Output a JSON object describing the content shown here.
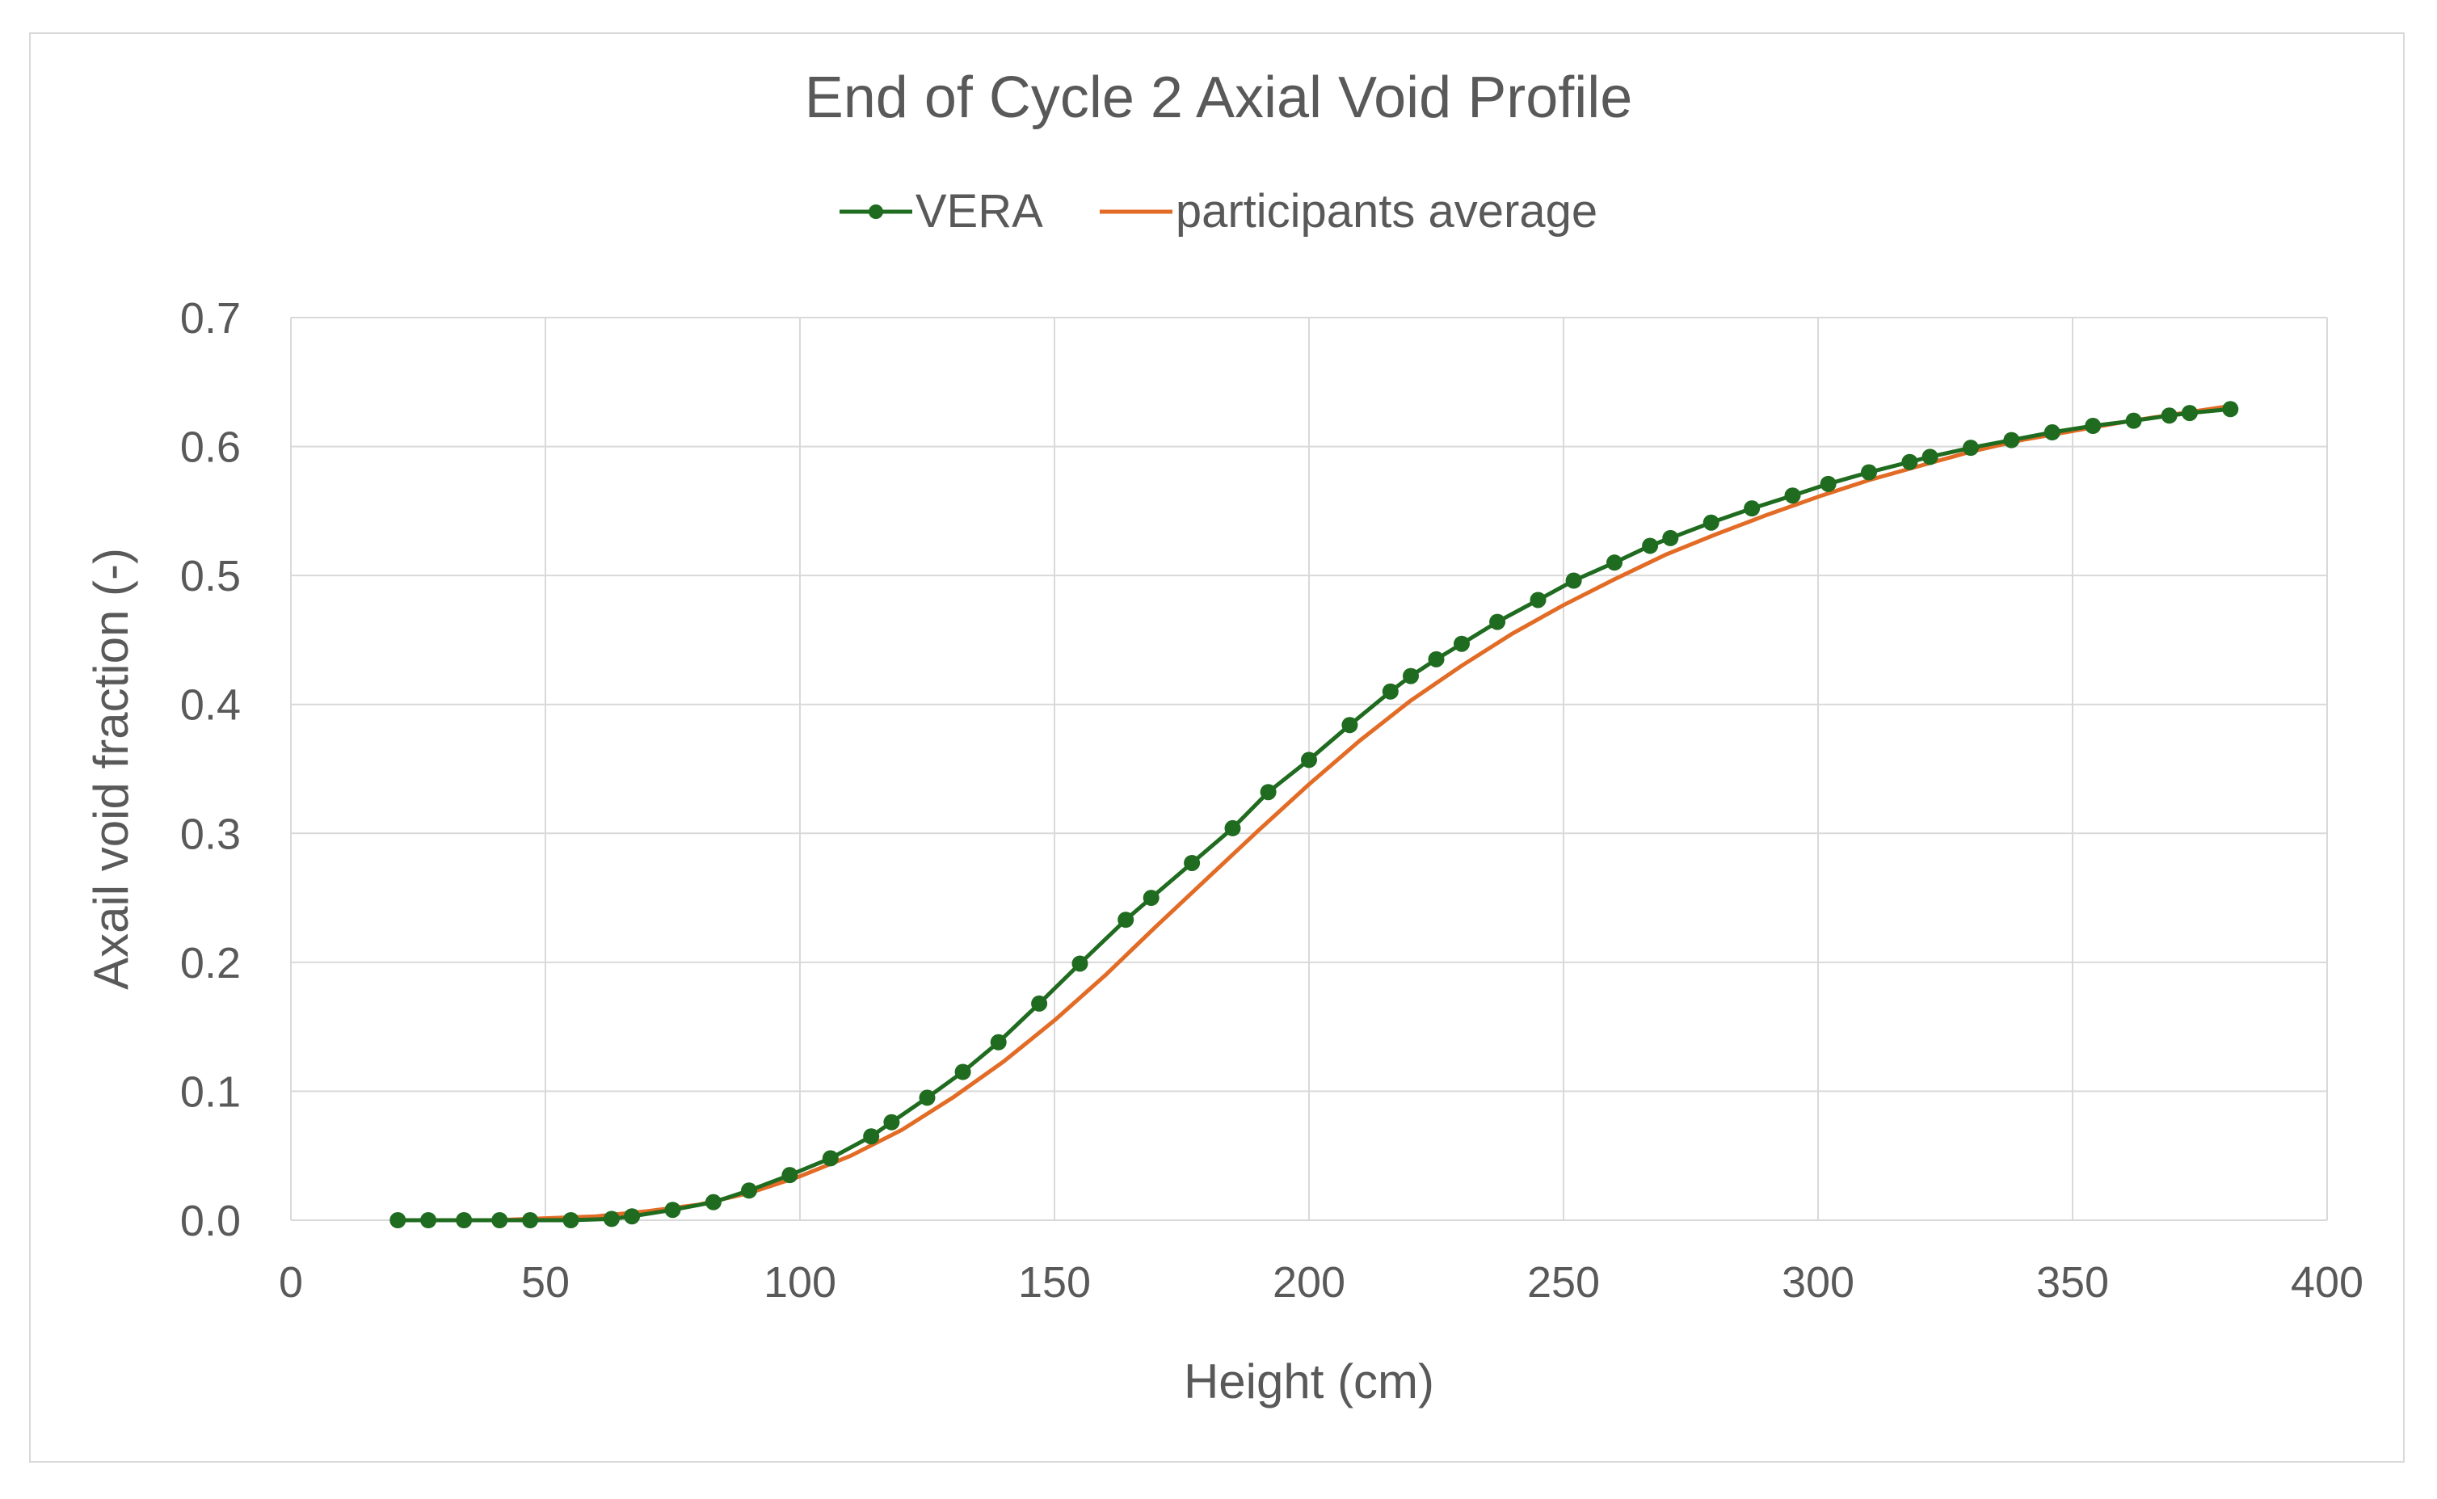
{
  "chart_data": {
    "type": "line",
    "title": "End of Cycle 2 Axial Void Profile",
    "xlabel": "Height (cm)",
    "ylabel": "Axail void fraction (-)",
    "xlim": [
      0,
      400
    ],
    "ylim": [
      0,
      0.7
    ],
    "xticks": [
      "0",
      "50",
      "100",
      "150",
      "200",
      "250",
      "300",
      "350",
      "400"
    ],
    "yticks": [
      "0.0",
      "0.1",
      "0.2",
      "0.3",
      "0.4",
      "0.5",
      "0.6",
      "0.7"
    ],
    "grid": true,
    "legend_position": "top",
    "series": [
      {
        "name": "VERA",
        "color": "#1f6b1f",
        "marker": "circle",
        "x": [
          21,
          27,
          34,
          41,
          47,
          55,
          63,
          67,
          75,
          83,
          90,
          98,
          106,
          114,
          118,
          125,
          132,
          139,
          147,
          155,
          164,
          169,
          177,
          185,
          192,
          200,
          208,
          216,
          220,
          225,
          230,
          237,
          245,
          252,
          260,
          267,
          271,
          279,
          287,
          295,
          302,
          310,
          318,
          322,
          330,
          338,
          346,
          354,
          362,
          369,
          373,
          381
        ],
        "y": [
          0.0,
          0.0,
          0.0,
          0.0,
          0.0,
          0.0,
          0.001,
          0.003,
          0.008,
          0.014,
          0.023,
          0.035,
          0.048,
          0.065,
          0.076,
          0.095,
          0.115,
          0.138,
          0.168,
          0.199,
          0.233,
          0.25,
          0.277,
          0.304,
          0.332,
          0.357,
          0.384,
          0.41,
          0.422,
          0.435,
          0.447,
          0.464,
          0.481,
          0.496,
          0.51,
          0.523,
          0.529,
          0.541,
          0.552,
          0.562,
          0.571,
          0.58,
          0.588,
          0.592,
          0.599,
          0.605,
          0.611,
          0.616,
          0.62,
          0.624,
          0.626,
          0.629
        ]
      },
      {
        "name": "participants average",
        "color": "#e26b25",
        "marker": "none",
        "x": [
          21,
          40,
          60,
          70,
          80,
          90,
          100,
          110,
          120,
          130,
          140,
          150,
          160,
          170,
          180,
          190,
          200,
          210,
          220,
          230,
          240,
          250,
          260,
          270,
          280,
          290,
          300,
          310,
          320,
          330,
          340,
          350,
          360,
          370,
          382
        ],
        "y": [
          0.0,
          0.0,
          0.003,
          0.007,
          0.012,
          0.021,
          0.034,
          0.05,
          0.07,
          0.095,
          0.123,
          0.155,
          0.19,
          0.228,
          0.265,
          0.302,
          0.338,
          0.372,
          0.403,
          0.43,
          0.455,
          0.477,
          0.497,
          0.516,
          0.532,
          0.547,
          0.561,
          0.574,
          0.585,
          0.596,
          0.605,
          0.612,
          0.619,
          0.625,
          0.632
        ]
      }
    ]
  }
}
